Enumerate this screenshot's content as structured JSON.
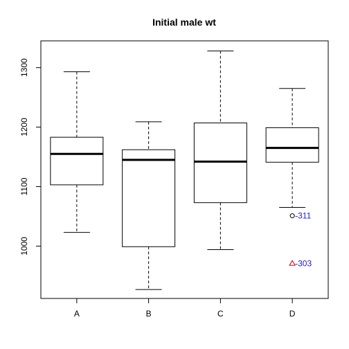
{
  "chart_data": {
    "type": "boxplot",
    "title": "Initial male wt",
    "xlabel": "",
    "ylabel": "",
    "ylim": [
      912,
      1345
    ],
    "y_ticks": [
      1000,
      1100,
      1200,
      1300
    ],
    "grid": false,
    "categories": [
      "A",
      "B",
      "C",
      "D"
    ],
    "boxes": [
      {
        "label": "A",
        "whisker_low": 1023,
        "q1": 1103,
        "median": 1155,
        "q3": 1183,
        "whisker_high": 1293
      },
      {
        "label": "B",
        "whisker_low": 927,
        "q1": 999,
        "median": 1145,
        "q3": 1162,
        "whisker_high": 1209
      },
      {
        "label": "C",
        "whisker_low": 994,
        "q1": 1073,
        "median": 1142,
        "q3": 1207,
        "whisker_high": 1328
      },
      {
        "label": "D",
        "whisker_low": 1065,
        "q1": 1141,
        "median": 1165,
        "q3": 1199,
        "whisker_high": 1265
      }
    ],
    "outliers": [
      {
        "group": "D",
        "value": 1051,
        "label": "311",
        "marker": "circle"
      },
      {
        "group": "D",
        "value": 971,
        "label": "303",
        "marker": "triangle"
      }
    ],
    "colors": {
      "box": "#000000",
      "outlier_circle": "#000000",
      "outlier_triangle": "#cc0000",
      "outlier_label": "#1a1ad6"
    }
  }
}
